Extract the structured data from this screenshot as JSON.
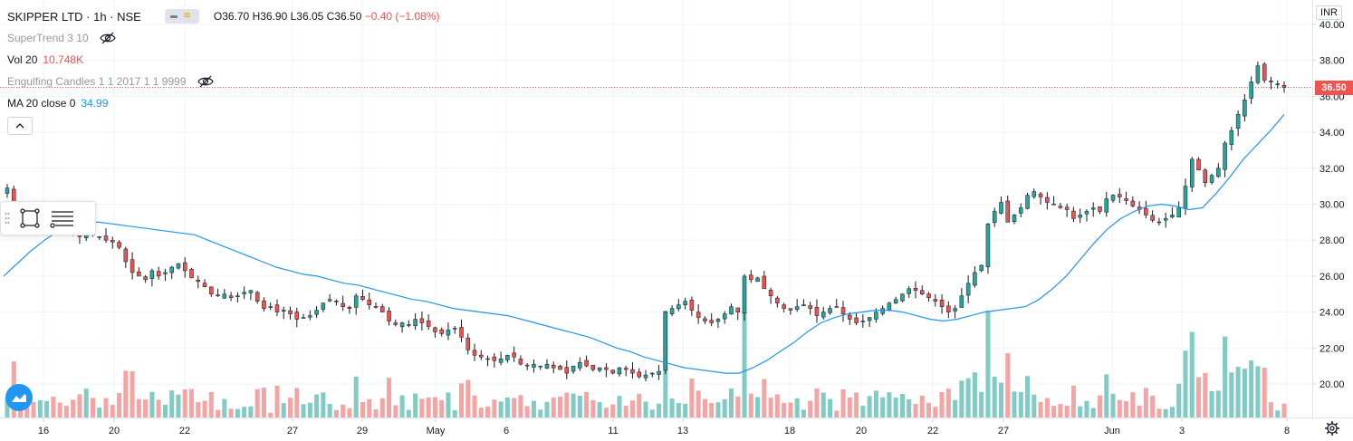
{
  "header": {
    "symbol": "SKIPPER LTD · 1h · NSE",
    "open": "O36.70",
    "high": "H36.90",
    "low": "L36.05",
    "close": "C36.50",
    "change": "−0.40 (−1.08%)"
  },
  "indicators": {
    "supertrend": "SuperTrend 3 10",
    "vol_name": "Vol 20",
    "vol_value": "10.748K",
    "engulfing": "Engulfing Candles 1 1 2017 1 1 9999",
    "ma_name": "MA 20 close 0",
    "ma_value": "34.99"
  },
  "currency": "INR",
  "last_price_label": "36.50",
  "colors": {
    "up": "#26a69a",
    "down": "#ef5350",
    "ma": "#2196f3",
    "vol_up": "#80cbc4",
    "vol_down": "#f5a3a3"
  },
  "icons": [
    "eye-off-icon",
    "chevron-up-icon",
    "rectangle-tool-icon",
    "lines-tool-icon",
    "tradingview-logo-icon",
    "gear-icon"
  ],
  "chart_data": {
    "type": "candlestick",
    "y_ticks": [
      "20.00",
      "22.00",
      "24.00",
      "26.00",
      "28.00",
      "30.00",
      "32.00",
      "34.00",
      "36.00",
      "38.00",
      "40.00"
    ],
    "x_ticks": [
      "16",
      "20",
      "22",
      "27",
      "29",
      "May",
      "6",
      "11",
      "13",
      "18",
      "20",
      "22",
      "27",
      "Jun",
      "3",
      "8"
    ],
    "ylim": [
      17.8,
      40.6
    ],
    "last_price": 36.5,
    "close_series": [
      30.9,
      29.8,
      29.4,
      29.2,
      29.0,
      29.1,
      29.3,
      29.0,
      28.8,
      28.6,
      28.4,
      28.2,
      28.5,
      28.3,
      28.2,
      28.0,
      27.9,
      27.6,
      26.8,
      26.2,
      26.0,
      25.8,
      26.3,
      26.0,
      26.2,
      26.5,
      26.7,
      26.3,
      25.9,
      25.7,
      25.4,
      25.0,
      24.9,
      25.0,
      24.8,
      24.9,
      25.1,
      25.2,
      24.6,
      24.2,
      24.3,
      24.0,
      24.1,
      23.9,
      23.6,
      23.7,
      23.8,
      24.1,
      24.5,
      24.7,
      24.6,
      24.3,
      24.2,
      24.9,
      24.7,
      24.4,
      24.3,
      24.0,
      23.5,
      23.3,
      23.4,
      23.3,
      23.6,
      23.4,
      23.2,
      22.9,
      22.8,
      23.0,
      23.1,
      22.6,
      21.9,
      21.6,
      21.5,
      21.4,
      21.3,
      21.4,
      21.6,
      21.5,
      21.1,
      21.0,
      21.1,
      21.0,
      21.1,
      20.9,
      20.8,
      20.6,
      21.0,
      21.2,
      21.0,
      20.8,
      20.9,
      20.8,
      20.6,
      20.9,
      20.8,
      20.6,
      20.4,
      20.5,
      20.6,
      20.7,
      24.0,
      24.2,
      24.4,
      24.6,
      24.1,
      23.7,
      23.5,
      23.4,
      23.6,
      23.9,
      24.3,
      24.0,
      26.0,
      25.8,
      25.9,
      25.3,
      24.9,
      24.5,
      24.2,
      24.1,
      24.3,
      24.4,
      24.2,
      23.8,
      24.0,
      24.2,
      24.3,
      23.9,
      23.6,
      23.4,
      23.5,
      23.7,
      24.0,
      24.2,
      24.5,
      24.7,
      25.0,
      25.3,
      25.2,
      25.0,
      24.8,
      24.6,
      24.3,
      24.0,
      24.2,
      24.9,
      25.6,
      26.2,
      26.6,
      28.9,
      29.6,
      30.1,
      29.0,
      29.4,
      29.8,
      30.5,
      30.7,
      30.4,
      30.1,
      30.0,
      29.8,
      29.7,
      29.2,
      29.4,
      29.6,
      29.8,
      29.6,
      30.3,
      30.5,
      30.4,
      30.2,
      29.9,
      29.7,
      29.4,
      29.1,
      29.0,
      29.2,
      29.4,
      29.8,
      31.0,
      32.5,
      31.9,
      31.2,
      31.6,
      32.0,
      33.4,
      34.1,
      35.0,
      35.8,
      36.8,
      37.7,
      36.9,
      36.8,
      36.7,
      36.5
    ],
    "ma20_series": [
      26.0,
      26.7,
      27.4,
      28.0,
      28.5,
      28.8,
      29.0,
      29.0,
      28.9,
      28.8,
      28.7,
      28.6,
      28.5,
      28.4,
      28.3,
      28.0,
      27.7,
      27.4,
      27.1,
      26.8,
      26.5,
      26.3,
      26.1,
      26.0,
      25.8,
      25.6,
      25.5,
      25.3,
      25.1,
      24.9,
      24.7,
      24.6,
      24.4,
      24.2,
      24.1,
      24.0,
      23.9,
      23.8,
      23.6,
      23.4,
      23.2,
      23.0,
      22.8,
      22.6,
      22.3,
      22.0,
      21.8,
      21.5,
      21.3,
      21.1,
      20.9,
      20.8,
      20.7,
      20.6,
      20.6,
      20.9,
      21.3,
      21.8,
      22.3,
      22.9,
      23.4,
      23.7,
      23.9,
      24.0,
      24.1,
      24.1,
      24.0,
      23.8,
      23.6,
      23.5,
      23.6,
      23.8,
      24.0,
      24.1,
      24.2,
      24.3,
      24.7,
      25.3,
      26.0,
      26.9,
      27.8,
      28.6,
      29.2,
      29.6,
      29.9,
      30.0,
      29.9,
      29.7,
      29.8,
      30.6,
      31.5,
      32.5,
      33.3,
      34.1,
      34.99
    ]
  }
}
